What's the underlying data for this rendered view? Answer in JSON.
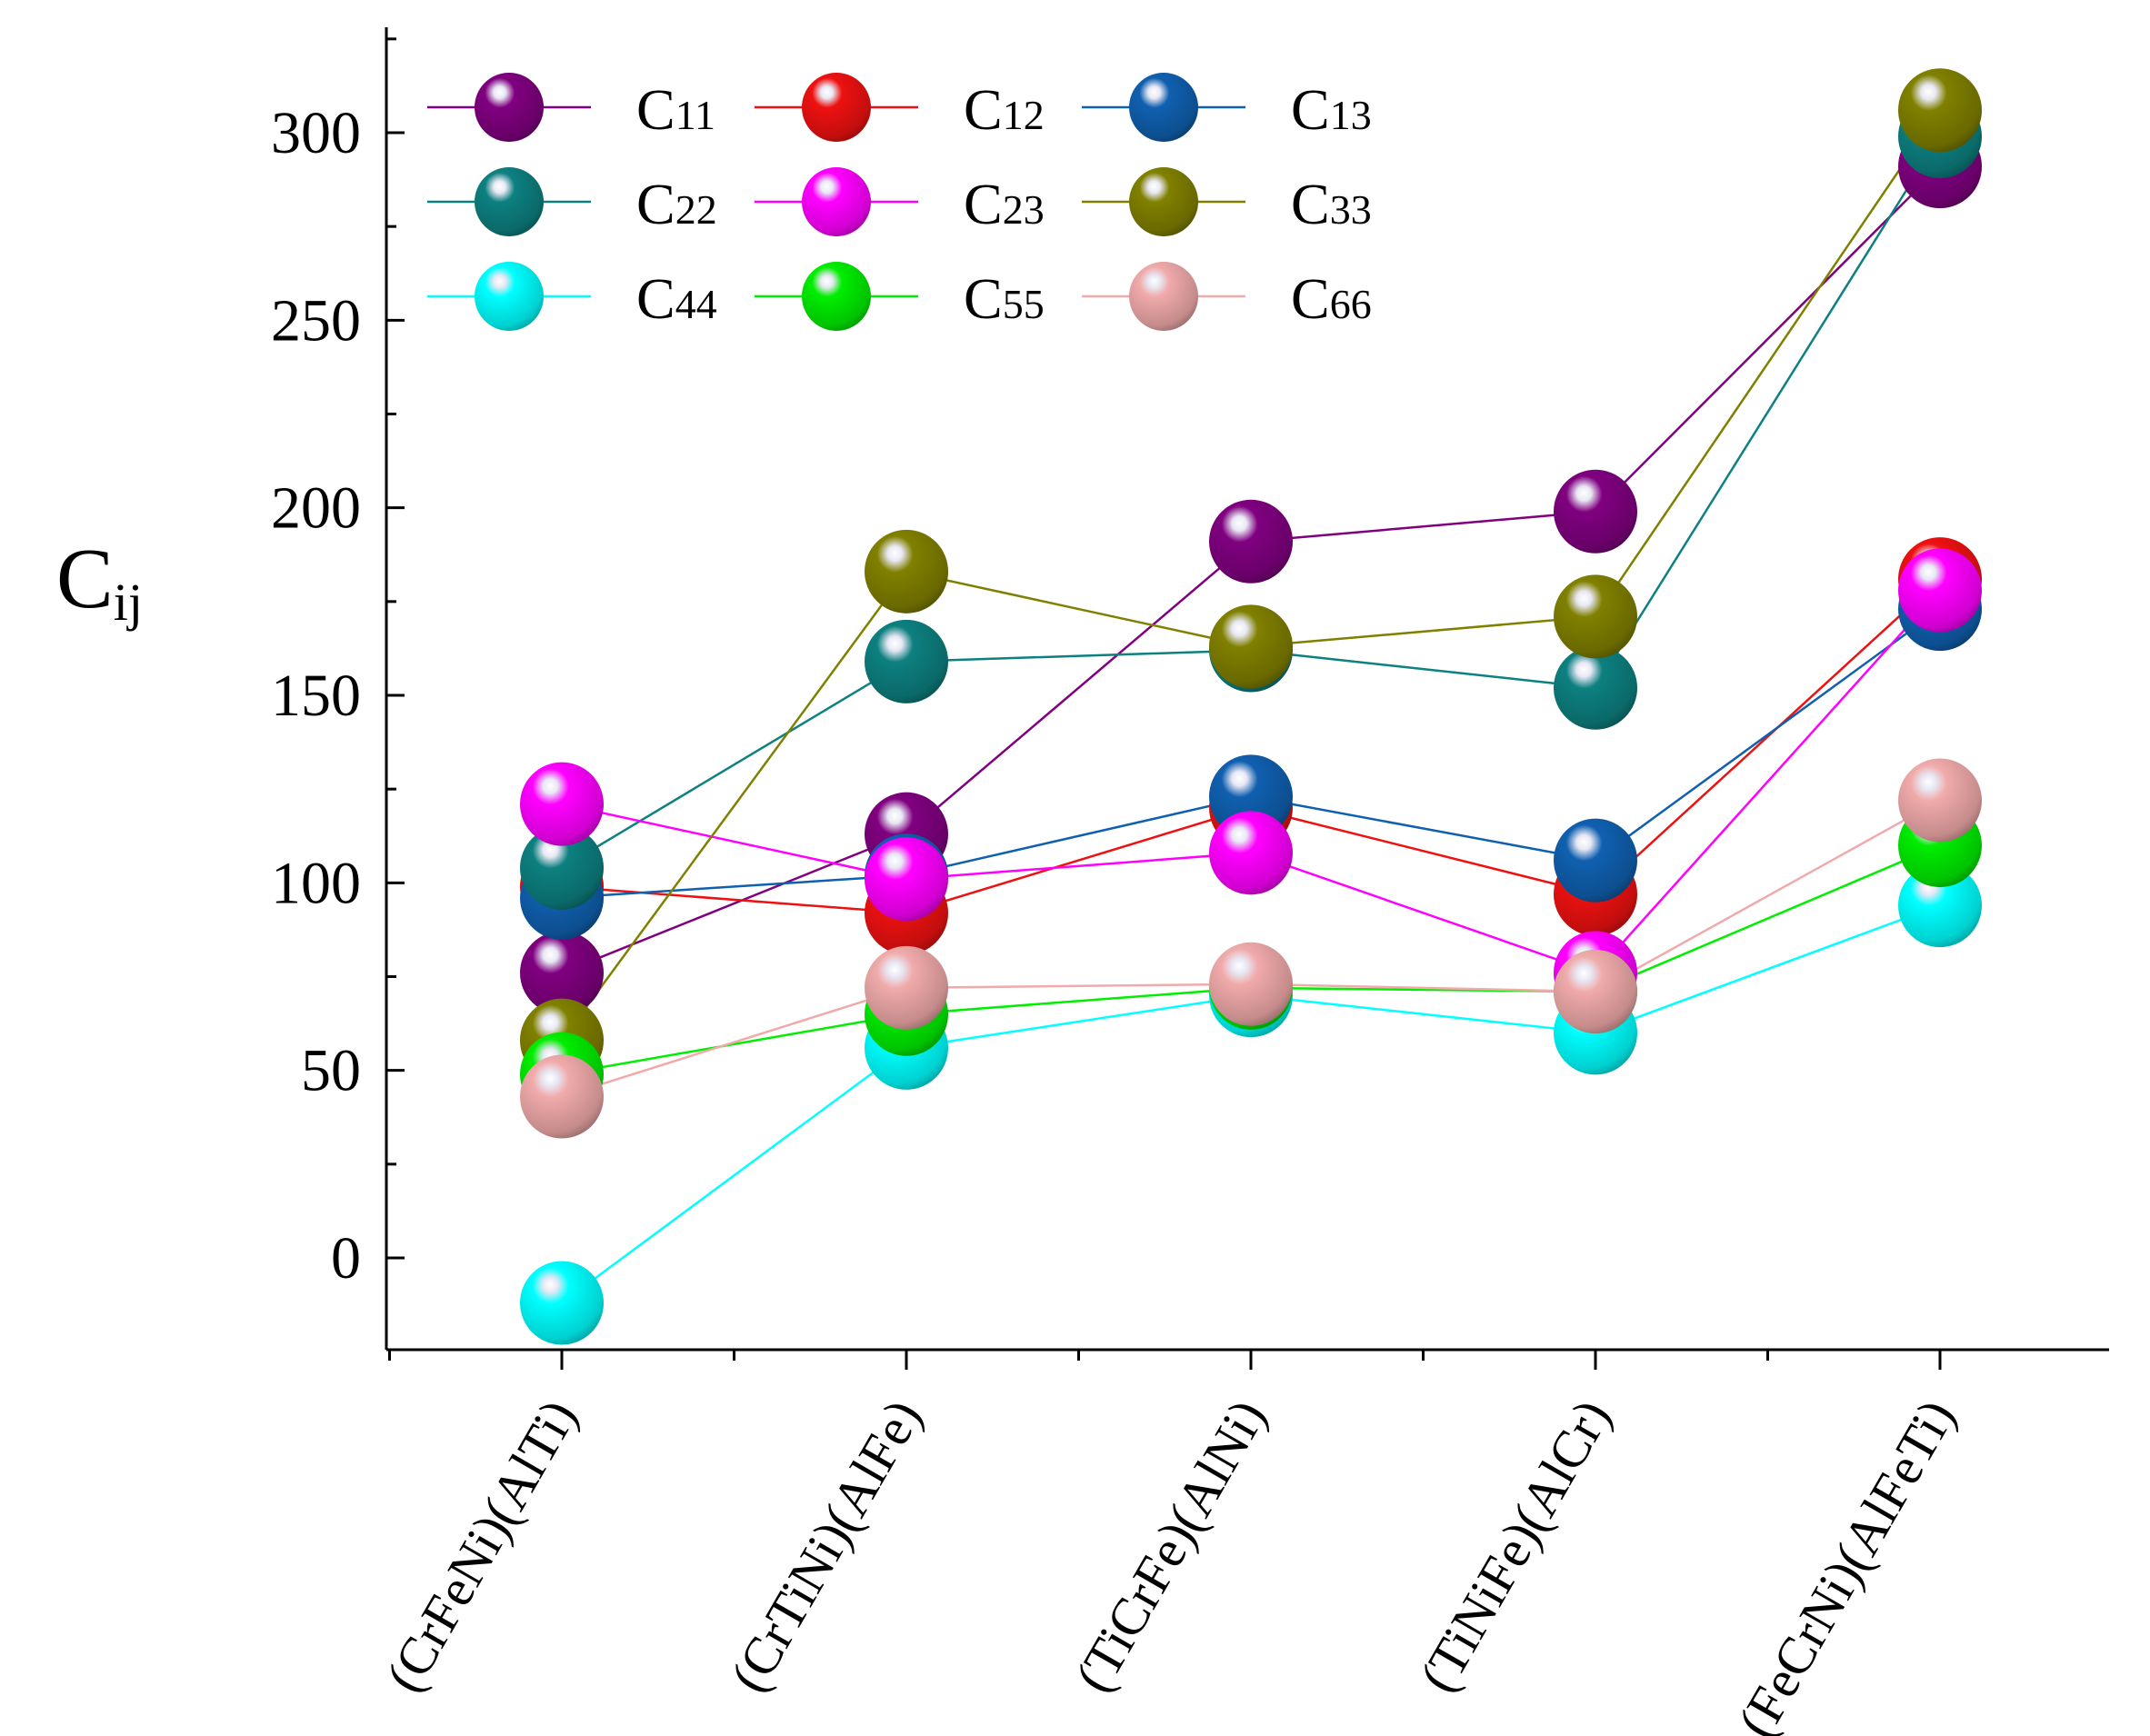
{
  "chart_data": {
    "type": "line",
    "title": "",
    "xlabel": "",
    "ylabel": "C",
    "ylabel_sub": "ij",
    "ylim": [
      -25,
      325
    ],
    "yticks": [
      0,
      50,
      100,
      150,
      200,
      250,
      300
    ],
    "categories": [
      "(CrFeNi)(AlTi)",
      "(CrTiNi)(AlFe)",
      "(TiCrFe)(AlNi)",
      "(TiNiFe)(AlCr)",
      "(FeCrNi)(AlFeTi)"
    ],
    "legend_position": "top-left",
    "series": [
      {
        "name": "C",
        "sub": "11",
        "color": "#800080",
        "values": [
          76,
          113,
          191,
          199,
          291
        ]
      },
      {
        "name": "C",
        "sub": "12",
        "color": "#ee1111",
        "values": [
          99,
          92,
          120,
          97,
          181
        ]
      },
      {
        "name": "C",
        "sub": "13",
        "color": "#1060b0",
        "values": [
          96,
          102,
          123,
          106,
          173
        ]
      },
      {
        "name": "C",
        "sub": "22",
        "color": "#0d8080",
        "values": [
          104,
          159,
          162,
          152,
          299
        ]
      },
      {
        "name": "C",
        "sub": "23",
        "color": "#ff00ff",
        "values": [
          121,
          101,
          108,
          76,
          178
        ]
      },
      {
        "name": "C",
        "sub": "33",
        "color": "#808000",
        "values": [
          58,
          183,
          163,
          171,
          306
        ]
      },
      {
        "name": "C",
        "sub": "44",
        "color": "#00ffff",
        "values": [
          -12,
          56,
          70,
          60,
          94
        ]
      },
      {
        "name": "C",
        "sub": "55",
        "color": "#00ee00",
        "values": [
          49,
          65,
          72,
          71,
          110
        ]
      },
      {
        "name": "C",
        "sub": "66",
        "color": "#f0aaaa",
        "values": [
          43,
          72,
          73,
          71,
          122
        ]
      }
    ]
  }
}
